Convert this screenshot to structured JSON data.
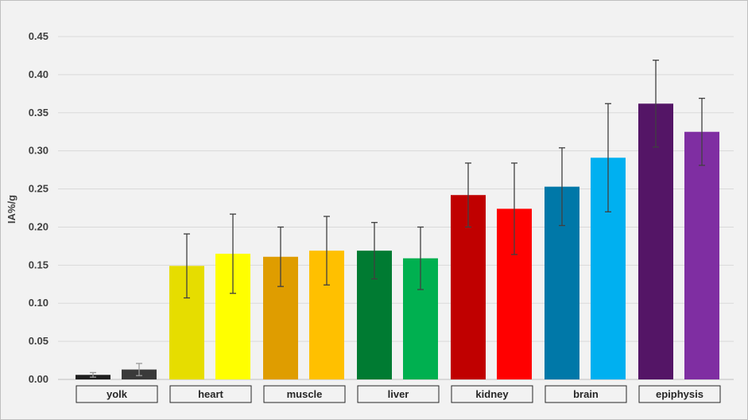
{
  "chart_data": {
    "type": "bar",
    "ylabel": "IA%/g",
    "ylim": [
      0,
      0.45
    ],
    "yticks": [
      "0.00",
      "0.05",
      "0.10",
      "0.15",
      "0.20",
      "0.25",
      "0.30",
      "0.35",
      "0.40",
      "0.45"
    ],
    "grid": true,
    "categories": [
      "yolk",
      "heart",
      "muscle",
      "liver",
      "kidney",
      "brain",
      "epiphysis"
    ],
    "bars": [
      {
        "category": "yolk",
        "value": 0.006,
        "error": 0.003,
        "color": "#1f1f1f",
        "error_color": "#9a9a9a"
      },
      {
        "category": "yolk",
        "value": 0.013,
        "error": 0.008,
        "color": "#3a3a3a",
        "error_color": "#9a9a9a"
      },
      {
        "category": "heart",
        "value": 0.149,
        "error": 0.042,
        "color": "#e6dd00",
        "error_color": "#404040"
      },
      {
        "category": "heart",
        "value": 0.165,
        "error": 0.052,
        "color": "#ffff00",
        "error_color": "#404040"
      },
      {
        "category": "muscle",
        "value": 0.161,
        "error": 0.039,
        "color": "#df9d00",
        "error_color": "#404040"
      },
      {
        "category": "muscle",
        "value": 0.169,
        "error": 0.045,
        "color": "#ffc000",
        "error_color": "#404040"
      },
      {
        "category": "liver",
        "value": 0.169,
        "error": 0.037,
        "color": "#007b32",
        "error_color": "#404040"
      },
      {
        "category": "liver",
        "value": 0.159,
        "error": 0.041,
        "color": "#00b050",
        "error_color": "#404040"
      },
      {
        "category": "kidney",
        "value": 0.242,
        "error": 0.042,
        "color": "#c00000",
        "error_color": "#404040"
      },
      {
        "category": "kidney",
        "value": 0.224,
        "error": 0.06,
        "color": "#ff0000",
        "error_color": "#404040"
      },
      {
        "category": "brain",
        "value": 0.253,
        "error": 0.051,
        "color": "#0078a8",
        "error_color": "#404040"
      },
      {
        "category": "brain",
        "value": 0.291,
        "error": 0.071,
        "color": "#00b0f0",
        "error_color": "#404040"
      },
      {
        "category": "epiphysis",
        "value": 0.362,
        "error": 0.057,
        "color": "#541566",
        "error_color": "#404040"
      },
      {
        "category": "epiphysis",
        "value": 0.325,
        "error": 0.044,
        "color": "#7f2ea2",
        "error_color": "#404040"
      }
    ]
  }
}
